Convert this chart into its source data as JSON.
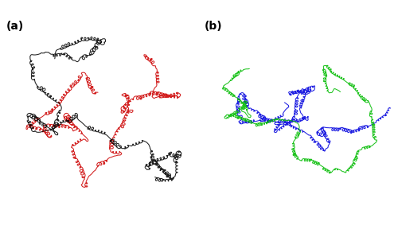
{
  "panel_a_label": "(a)",
  "panel_b_label": "(b)",
  "label_fontsize": 10,
  "label_fontweight": "bold",
  "background_color": "#ffffff",
  "panel_a_colors": [
    "#cc0000",
    "#000000"
  ],
  "panel_b_colors": [
    "#0000dd",
    "#00bb00"
  ],
  "fig_width": 5.0,
  "fig_height": 2.93,
  "dpi": 100
}
